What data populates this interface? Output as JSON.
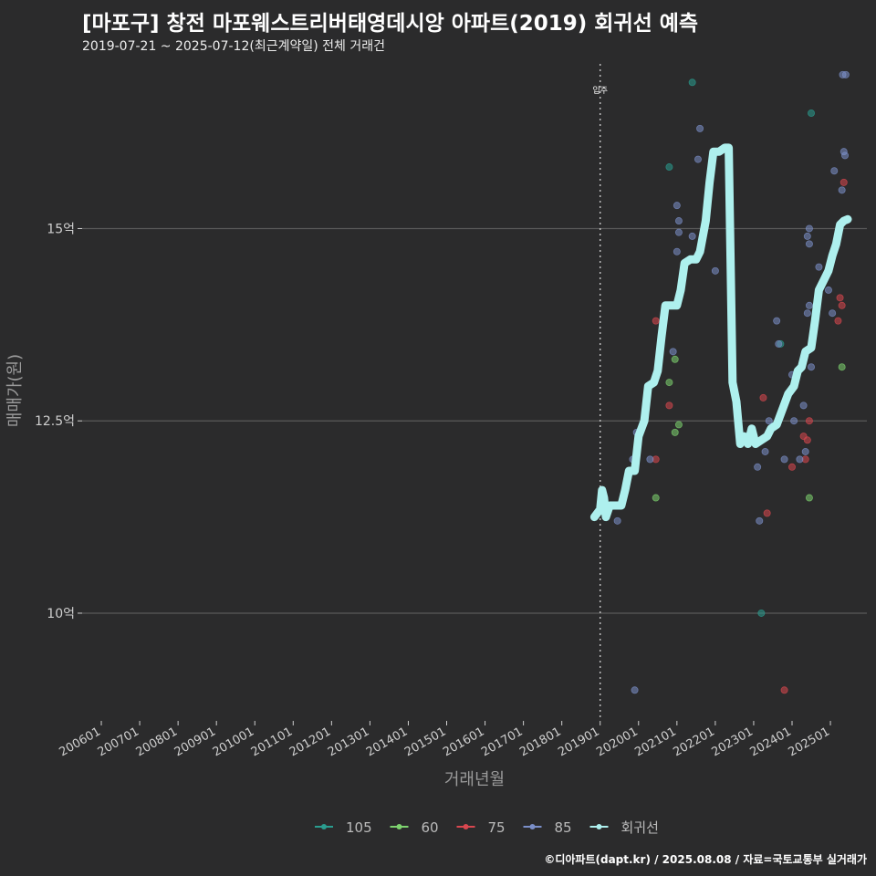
{
  "header": {
    "title": "[마포구] 창전 마포웨스트리버태영데시앙 아파트(2019) 회귀선 예측",
    "subtitle": "2019-07-21 ~ 2025-07-12(최근계약일) 전체 거래건"
  },
  "footer": {
    "credit": "©디아파트(dapt.kr) / 2025.08.08 / 자료=국토교통부 실거래가"
  },
  "colors": {
    "background": "#2b2b2c",
    "grid": "#5a5a5a",
    "series_105": "#2a9d8f",
    "series_60": "#7ed36f",
    "series_75": "#d9474f",
    "series_85": "#7b8fc9",
    "regression": "#aef0ee"
  },
  "chart_data": {
    "type": "scatter",
    "xlabel": "거래년월",
    "ylabel": "매매가(원)",
    "x_unit": "year (decimal)",
    "y_unit": "억",
    "xlim": [
      2005.5,
      2025.95
    ],
    "ylim": [
      8.6,
      17.2
    ],
    "y_ticks": [
      {
        "value": 10,
        "label": "10억"
      },
      {
        "value": 12.5,
        "label": "12.5억"
      },
      {
        "value": 15,
        "label": "15억"
      }
    ],
    "x_ticks": [
      {
        "value": 2006,
        "label": "200601"
      },
      {
        "value": 2007,
        "label": "200701"
      },
      {
        "value": 2008,
        "label": "200801"
      },
      {
        "value": 2009,
        "label": "200901"
      },
      {
        "value": 2010,
        "label": "201001"
      },
      {
        "value": 2011,
        "label": "201101"
      },
      {
        "value": 2012,
        "label": "201201"
      },
      {
        "value": 2013,
        "label": "201301"
      },
      {
        "value": 2014,
        "label": "201401"
      },
      {
        "value": 2015,
        "label": "201501"
      },
      {
        "value": 2016,
        "label": "201601"
      },
      {
        "value": 2017,
        "label": "201701"
      },
      {
        "value": 2018,
        "label": "201801"
      },
      {
        "value": 2019,
        "label": "201901"
      },
      {
        "value": 2020,
        "label": "202001"
      },
      {
        "value": 2021,
        "label": "202101"
      },
      {
        "value": 2022,
        "label": "202201"
      },
      {
        "value": 2023,
        "label": "202301"
      },
      {
        "value": 2024,
        "label": "202401"
      },
      {
        "value": 2025,
        "label": "202501"
      }
    ],
    "annotation": {
      "x": 2019.0,
      "label": "입주"
    },
    "legend": [
      {
        "name": "105",
        "color": "#2a9d8f"
      },
      {
        "name": "60",
        "color": "#7ed36f"
      },
      {
        "name": "75",
        "color": "#d9474f"
      },
      {
        "name": "85",
        "color": "#7b8fc9"
      },
      {
        "name": "회귀선",
        "color": "#aef0ee"
      }
    ],
    "series": [
      {
        "name": "105",
        "color": "#2a9d8f",
        "points": [
          [
            2020.8,
            15.8
          ],
          [
            2021.4,
            16.9
          ],
          [
            2024.5,
            16.5
          ],
          [
            2023.2,
            10.0
          ],
          [
            2023.7,
            13.5
          ]
        ]
      },
      {
        "name": "60",
        "color": "#7ed36f",
        "points": [
          [
            2020.45,
            11.5
          ],
          [
            2020.8,
            13.0
          ],
          [
            2020.95,
            13.3
          ],
          [
            2021.05,
            12.45
          ],
          [
            2020.95,
            12.35
          ],
          [
            2024.45,
            11.5
          ],
          [
            2025.3,
            13.2
          ]
        ]
      },
      {
        "name": "75",
        "color": "#d9474f",
        "points": [
          [
            2020.45,
            12.0
          ],
          [
            2020.45,
            13.8
          ],
          [
            2020.8,
            12.7
          ],
          [
            2023.25,
            12.8
          ],
          [
            2023.35,
            11.3
          ],
          [
            2023.8,
            9.0
          ],
          [
            2024.0,
            11.9
          ],
          [
            2024.3,
            12.3
          ],
          [
            2024.35,
            12.0
          ],
          [
            2024.4,
            12.25
          ],
          [
            2024.45,
            12.5
          ],
          [
            2025.2,
            13.8
          ],
          [
            2025.25,
            14.1
          ],
          [
            2025.3,
            14.0
          ],
          [
            2025.35,
            15.6
          ]
        ]
      },
      {
        "name": "85",
        "color": "#7b8fc9",
        "points": [
          [
            2019.45,
            11.2
          ],
          [
            2019.9,
            9.0
          ],
          [
            2019.95,
            12.35
          ],
          [
            2019.85,
            12.0
          ],
          [
            2020.3,
            12.0
          ],
          [
            2020.9,
            13.4
          ],
          [
            2021.0,
            14.7
          ],
          [
            2021.0,
            15.3
          ],
          [
            2021.05,
            15.1
          ],
          [
            2021.05,
            14.95
          ],
          [
            2021.4,
            14.9
          ],
          [
            2021.55,
            15.9
          ],
          [
            2021.6,
            16.3
          ],
          [
            2022.0,
            14.45
          ],
          [
            2023.1,
            11.9
          ],
          [
            2023.15,
            11.2
          ],
          [
            2023.3,
            12.1
          ],
          [
            2023.4,
            12.5
          ],
          [
            2023.6,
            13.8
          ],
          [
            2023.65,
            13.5
          ],
          [
            2023.8,
            12.0
          ],
          [
            2024.0,
            13.1
          ],
          [
            2024.05,
            12.5
          ],
          [
            2024.2,
            12.0
          ],
          [
            2024.3,
            12.7
          ],
          [
            2024.35,
            12.1
          ],
          [
            2024.4,
            14.9
          ],
          [
            2024.4,
            13.9
          ],
          [
            2024.45,
            14.0
          ],
          [
            2024.5,
            13.2
          ],
          [
            2024.45,
            14.8
          ],
          [
            2024.45,
            15.0
          ],
          [
            2024.7,
            14.5
          ],
          [
            2024.95,
            14.2
          ],
          [
            2025.05,
            13.9
          ],
          [
            2025.1,
            15.75
          ],
          [
            2025.3,
            15.5
          ],
          [
            2025.35,
            16.0
          ],
          [
            2025.38,
            15.95
          ],
          [
            2025.32,
            17.0
          ],
          [
            2025.4,
            17.0
          ]
        ]
      }
    ],
    "regression": [
      [
        2018.85,
        11.25
      ],
      [
        2019.0,
        11.35
      ],
      [
        2019.05,
        11.6
      ],
      [
        2019.1,
        11.5
      ],
      [
        2019.15,
        11.25
      ],
      [
        2019.25,
        11.4
      ],
      [
        2019.4,
        11.4
      ],
      [
        2019.55,
        11.4
      ],
      [
        2019.65,
        11.6
      ],
      [
        2019.75,
        11.85
      ],
      [
        2019.9,
        11.85
      ],
      [
        2020.0,
        12.3
      ],
      [
        2020.15,
        12.5
      ],
      [
        2020.25,
        12.95
      ],
      [
        2020.4,
        13.0
      ],
      [
        2020.5,
        13.15
      ],
      [
        2020.6,
        13.6
      ],
      [
        2020.7,
        14.0
      ],
      [
        2020.85,
        14.0
      ],
      [
        2021.0,
        14.0
      ],
      [
        2021.1,
        14.2
      ],
      [
        2021.2,
        14.55
      ],
      [
        2021.35,
        14.6
      ],
      [
        2021.5,
        14.6
      ],
      [
        2021.6,
        14.7
      ],
      [
        2021.75,
        15.1
      ],
      [
        2021.85,
        15.6
      ],
      [
        2021.95,
        16.0
      ],
      [
        2022.1,
        16.0
      ],
      [
        2022.25,
        16.05
      ],
      [
        2022.35,
        16.05
      ],
      [
        2022.45,
        13.0
      ],
      [
        2022.55,
        12.75
      ],
      [
        2022.65,
        12.2
      ],
      [
        2022.75,
        12.3
      ],
      [
        2022.85,
        12.2
      ],
      [
        2022.95,
        12.4
      ],
      [
        2023.05,
        12.2
      ],
      [
        2023.2,
        12.25
      ],
      [
        2023.35,
        12.3
      ],
      [
        2023.45,
        12.4
      ],
      [
        2023.6,
        12.45
      ],
      [
        2023.75,
        12.65
      ],
      [
        2023.9,
        12.85
      ],
      [
        2024.05,
        12.95
      ],
      [
        2024.15,
        13.15
      ],
      [
        2024.25,
        13.2
      ],
      [
        2024.35,
        13.4
      ],
      [
        2024.5,
        13.45
      ],
      [
        2024.6,
        13.8
      ],
      [
        2024.7,
        14.2
      ],
      [
        2024.85,
        14.35
      ],
      [
        2024.95,
        14.45
      ],
      [
        2025.05,
        14.65
      ],
      [
        2025.15,
        14.8
      ],
      [
        2025.25,
        15.05
      ],
      [
        2025.35,
        15.1
      ],
      [
        2025.45,
        15.12
      ]
    ]
  }
}
